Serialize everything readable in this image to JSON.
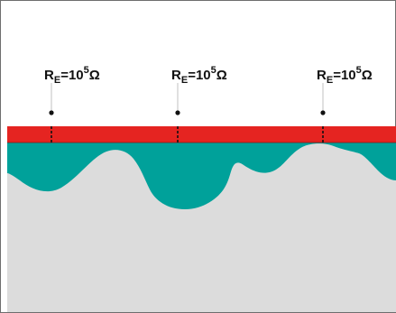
{
  "probes": [
    {
      "R": "R",
      "sub": "E",
      "eq": "=10",
      "sup": "5",
      "unit": "Ω"
    },
    {
      "R": "R",
      "sub": "E",
      "eq": "=10",
      "sup": "5",
      "unit": "Ω"
    },
    {
      "R": "R",
      "sub": "E",
      "eq": "=10",
      "sup": "5",
      "unit": "Ω"
    }
  ],
  "colors": {
    "background": "#ffffff",
    "border": "#6e6e6e",
    "coating": "#e52421",
    "layer": "#00a19a",
    "substrate": "#dcdcdc"
  }
}
